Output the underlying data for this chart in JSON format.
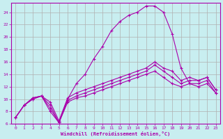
{
  "background_color": "#c8eef0",
  "grid_color": "#b0b0b0",
  "line_color": "#aa00aa",
  "xlabel": "Windchill (Refroidissement éolien,°C)",
  "xlim": [
    -0.5,
    23.5
  ],
  "ylim": [
    6,
    25.5
  ],
  "yticks": [
    6,
    8,
    10,
    12,
    14,
    16,
    18,
    20,
    22,
    24
  ],
  "xticks": [
    0,
    1,
    2,
    3,
    4,
    5,
    6,
    7,
    8,
    9,
    10,
    11,
    12,
    13,
    14,
    15,
    16,
    17,
    18,
    19,
    20,
    21,
    22,
    23
  ],
  "series": [
    [
      7.0,
      9.0,
      10.0,
      10.5,
      8.0,
      6.2,
      9.5,
      10.2,
      10.5,
      11.0,
      11.5,
      12.0,
      12.5,
      13.0,
      13.5,
      14.0,
      14.5,
      13.5,
      12.5,
      12.0,
      12.5,
      12.5,
      13.0,
      11.0
    ],
    [
      7.0,
      9.0,
      10.0,
      10.5,
      9.0,
      6.2,
      9.8,
      10.5,
      11.0,
      11.5,
      12.0,
      12.5,
      13.0,
      13.5,
      14.0,
      14.5,
      15.5,
      14.5,
      13.5,
      12.5,
      13.0,
      13.0,
      13.5,
      11.5
    ],
    [
      7.0,
      9.0,
      10.2,
      10.5,
      9.5,
      6.5,
      10.2,
      11.0,
      11.5,
      12.0,
      12.5,
      13.0,
      13.5,
      14.0,
      14.5,
      15.0,
      16.0,
      15.0,
      14.5,
      13.0,
      13.5,
      13.0,
      13.5,
      11.5
    ],
    [
      7.0,
      9.0,
      10.2,
      10.5,
      8.5,
      6.2,
      10.0,
      12.5,
      14.0,
      16.5,
      18.5,
      21.0,
      22.5,
      23.5,
      24.0,
      25.0,
      25.0,
      24.0,
      20.5,
      15.0,
      12.5,
      12.0,
      12.5,
      11.0
    ]
  ]
}
